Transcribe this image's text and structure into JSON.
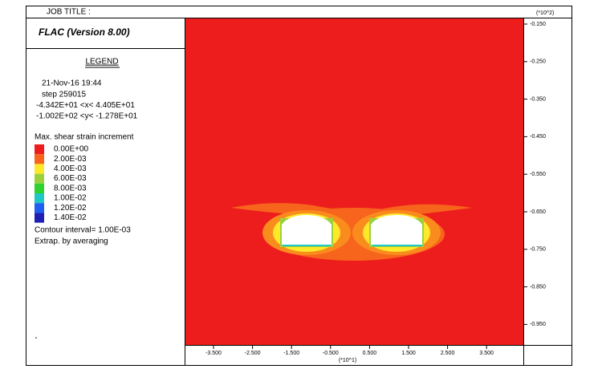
{
  "header": {
    "job_title": "JOB TITLE :",
    "program": "FLAC (Version 8.00)"
  },
  "legend": {
    "title": "LEGEND",
    "info": [
      "21-Nov-16  19:44",
      "step   259015",
      "-4.342E+01 <x<  4.405E+01",
      "-1.002E+02 <y< -1.278E+01"
    ],
    "contour_label": "Max. shear strain increment",
    "entries": [
      "0.00E+00",
      "2.00E-03",
      "4.00E-03",
      "6.00E-03",
      "8.00E-03",
      "1.00E-02",
      "1.20E-02",
      "1.40E-02"
    ],
    "footer": [
      "Contour interval=  1.00E-03",
      "Extrap. by averaging"
    ]
  },
  "axes": {
    "y_unit": "(*10^2)",
    "y_ticks": [
      "-0.150",
      "-0.250",
      "-0.350",
      "-0.450",
      "-0.550",
      "-0.650",
      "-0.750",
      "-0.850",
      "-0.950"
    ],
    "x_unit": "(*10^1)",
    "x_ticks": [
      "-3.500",
      "-2.500",
      "-1.500",
      "-0.500",
      "0.500",
      "1.500",
      "2.500",
      "3.500"
    ]
  }
}
